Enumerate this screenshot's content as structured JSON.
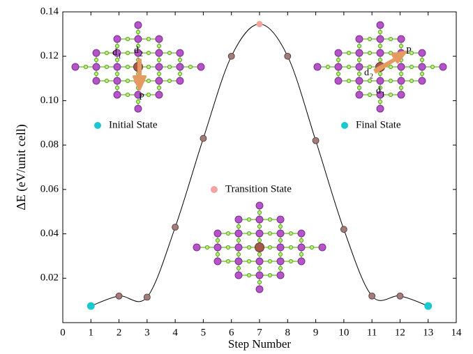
{
  "chart_data": {
    "type": "line",
    "xlabel": "Step Number",
    "ylabel": "ΔE (eV/unit cell)",
    "x": [
      1,
      2,
      3,
      4,
      5,
      6,
      7,
      8,
      9,
      10,
      11,
      12,
      13
    ],
    "values": [
      0.0075,
      0.012,
      0.0115,
      0.043,
      0.083,
      0.12,
      0.1345,
      0.12,
      0.082,
      0.042,
      0.012,
      0.012,
      0.0075
    ],
    "line_color": "#000000",
    "point_colors": [
      "#1cc8cf",
      "#a27b7b",
      "#a27b7b",
      "#a27b7b",
      "#a27b7b",
      "#a27b7b",
      "#f5a39d",
      "#a27b7b",
      "#a27b7b",
      "#a27b7b",
      "#a27b7b",
      "#a27b7b",
      "#1cc8cf"
    ],
    "xlim": [
      0,
      14
    ],
    "xticks": [
      0,
      1,
      2,
      3,
      4,
      5,
      6,
      7,
      8,
      9,
      10,
      11,
      12,
      13,
      14
    ],
    "ylim": [
      0,
      0.14
    ],
    "yticks": [
      0.02,
      0.04,
      0.06,
      0.08,
      {
        "value": 0.1,
        "label": "0.10"
      },
      0.12,
      0.14
    ],
    "annotations": [
      {
        "text": "Initial State",
        "color": "#1cc8cf"
      },
      {
        "text": "Final State",
        "color": "#1cc8cf"
      },
      {
        "text": "Transition State",
        "color": "#f5a39d"
      }
    ],
    "inset_labels": [
      "d",
      "1",
      "d",
      "2",
      "P",
      "d",
      "2",
      "d",
      "1",
      "P"
    ]
  }
}
